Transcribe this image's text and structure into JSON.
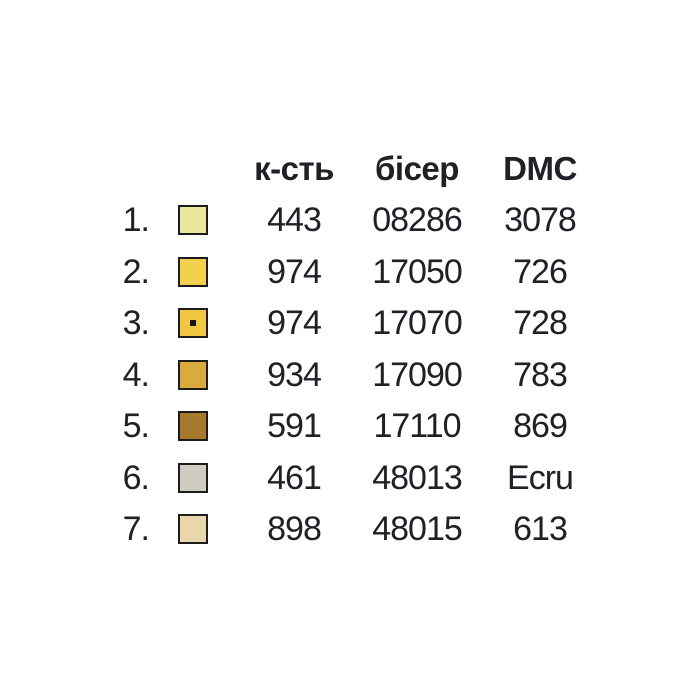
{
  "page": {
    "background": "#ffffff",
    "text_color": "#202027",
    "swatch_border_color": "#1c1c1c"
  },
  "table": {
    "headers": [
      {
        "key": "kst",
        "label": "к-сть"
      },
      {
        "key": "biser",
        "label": "бісер"
      },
      {
        "key": "dmc",
        "label": "DMC"
      }
    ],
    "rows": [
      {
        "index": "1.",
        "swatch": {
          "color": "#ebe79e",
          "dot": false
        },
        "kst": "443",
        "biser": "08286",
        "dmc": "3078"
      },
      {
        "index": "2.",
        "swatch": {
          "color": "#f2d14d",
          "dot": false
        },
        "kst": "974",
        "biser": "17050",
        "dmc": "726"
      },
      {
        "index": "3.",
        "swatch": {
          "color": "#f0c743",
          "dot": true
        },
        "kst": "974",
        "biser": "17070",
        "dmc": "728"
      },
      {
        "index": "4.",
        "swatch": {
          "color": "#d9aa3d",
          "dot": false
        },
        "kst": "934",
        "biser": "17090",
        "dmc": "783"
      },
      {
        "index": "5.",
        "swatch": {
          "color": "#a6792f",
          "dot": false
        },
        "kst": "591",
        "biser": "17110",
        "dmc": "869"
      },
      {
        "index": "6.",
        "swatch": {
          "color": "#cfccc1",
          "dot": false
        },
        "kst": "461",
        "biser": "48013",
        "dmc": "Ecru"
      },
      {
        "index": "7.",
        "swatch": {
          "color": "#e9d7ab",
          "dot": false
        },
        "kst": "898",
        "biser": "48015",
        "dmc": "613"
      }
    ]
  }
}
